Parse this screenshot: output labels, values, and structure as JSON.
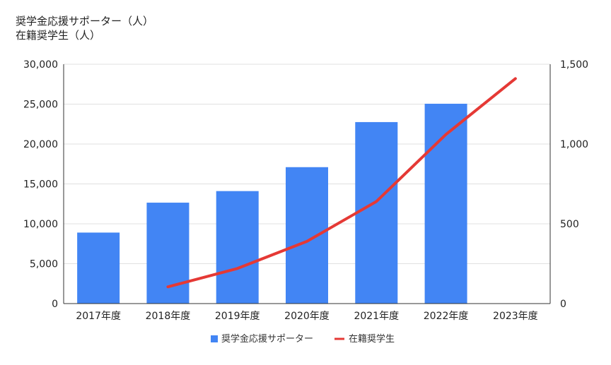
{
  "chart_data": {
    "type": "bar",
    "categories": [
      "2017年度",
      "2018年度",
      "2019年度",
      "2020年度",
      "2021年度",
      "2022年度",
      "2023年度"
    ],
    "series": [
      {
        "name": "奨学金応援サポーター",
        "type": "bar",
        "axis": "left",
        "color": "#4285f4",
        "values": [
          8900,
          12650,
          14100,
          17100,
          22750,
          25050,
          null
        ]
      },
      {
        "name": "在籍奨学生",
        "type": "line",
        "axis": "right",
        "color": "#e53935",
        "values": [
          null,
          105,
          220,
          390,
          640,
          1060,
          1410
        ]
      }
    ],
    "title_lines": [
      "奨学金応援サポーター（人）",
      "在籍奨学生（人）"
    ],
    "y_left": {
      "lim": [
        0,
        30000
      ],
      "ticks": [
        0,
        5000,
        10000,
        15000,
        20000,
        25000,
        30000
      ],
      "tick_labels": [
        "0",
        "5,000",
        "10,000",
        "15,000",
        "20,000",
        "25,000",
        "30,000"
      ]
    },
    "y_right": {
      "lim": [
        0,
        1500
      ],
      "ticks": [
        0,
        500,
        1000,
        1500
      ],
      "tick_labels": [
        "0",
        "500",
        "1,000",
        "1,500"
      ]
    },
    "grid": true,
    "legend": "bottom"
  }
}
